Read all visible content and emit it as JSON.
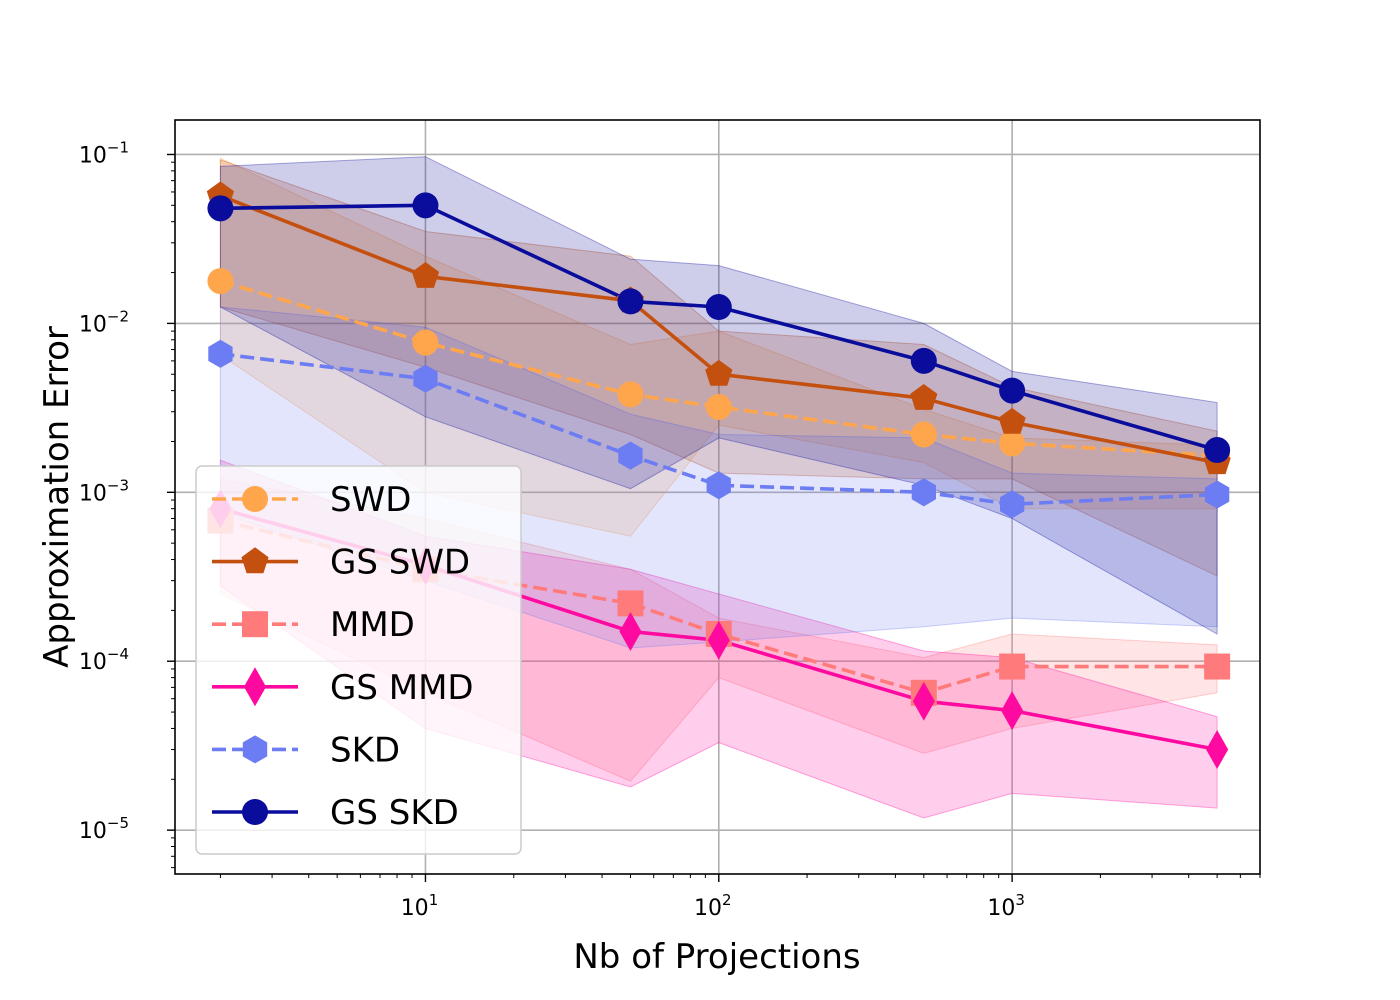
{
  "chart_data": {
    "type": "line",
    "title": "",
    "xlabel": "Nb of Projections",
    "ylabel": "Approximation Error",
    "xscale": "log",
    "yscale": "log",
    "xlim": [
      1.4,
      7000
    ],
    "ylim": [
      5.5e-06,
      0.16
    ],
    "grid": true,
    "legend_position": "lower-left",
    "x": [
      2,
      10,
      50,
      100,
      500,
      1000,
      5000
    ],
    "x_ticks": [
      {
        "value": 10,
        "base": "10",
        "exp": "1"
      },
      {
        "value": 100,
        "base": "10",
        "exp": "2"
      },
      {
        "value": 1000,
        "base": "10",
        "exp": "3"
      }
    ],
    "y_ticks": [
      {
        "value": 0.1,
        "base": "10",
        "exp": "−1"
      },
      {
        "value": 0.01,
        "base": "10",
        "exp": "−2"
      },
      {
        "value": 0.001,
        "base": "10",
        "exp": "−3"
      },
      {
        "value": 0.0001,
        "base": "10",
        "exp": "−4"
      },
      {
        "value": 1e-05,
        "base": "10",
        "exp": "−5"
      }
    ],
    "series": [
      {
        "name": "SWD",
        "color": "#ffa64d",
        "dashed": true,
        "marker": "circle",
        "values": [
          0.0178,
          0.0077,
          0.0038,
          0.0032,
          0.0022,
          0.00195,
          0.00165
        ],
        "lower": [
          0.0065,
          0.001,
          0.00055,
          0.0025,
          0.0015,
          0.0008,
          0.0008
        ],
        "upper": [
          0.095,
          0.025,
          0.0075,
          0.009,
          0.0031,
          0.0021,
          0.0019
        ]
      },
      {
        "name": "GS SWD",
        "color": "#c45010",
        "dashed": false,
        "marker": "pentagon",
        "values": [
          0.057,
          0.019,
          0.0136,
          0.005,
          0.0036,
          0.0026,
          0.0015
        ],
        "lower": [
          0.0125,
          0.0055,
          0.0022,
          0.0013,
          0.0012,
          0.0012,
          0.00032
        ],
        "upper": [
          0.093,
          0.035,
          0.025,
          0.009,
          0.0075,
          0.0042,
          0.0023
        ]
      },
      {
        "name": "MMD",
        "color": "#ff7b7b",
        "dashed": true,
        "marker": "square",
        "values": [
          0.00068,
          0.00035,
          0.00022,
          0.000145,
          6.5e-05,
          9.3e-05,
          9.3e-05
        ],
        "lower": [
          0.00025,
          6.5e-05,
          1.95e-05,
          8e-05,
          2.85e-05,
          4e-05,
          6.5e-05
        ],
        "upper": [
          0.0012,
          0.0007,
          0.00035,
          0.00018,
          0.000105,
          0.000145,
          0.000125
        ]
      },
      {
        "name": "GS MMD",
        "color": "#ff0aa0",
        "dashed": false,
        "marker": "diamond",
        "values": [
          0.0008,
          0.00037,
          0.00015,
          0.000133,
          5.8e-05,
          5.1e-05,
          3e-05
        ],
        "lower": [
          0.00028,
          4e-05,
          1.8e-05,
          3.3e-05,
          1.18e-05,
          1.65e-05,
          1.35e-05
        ],
        "upper": [
          0.00155,
          0.00055,
          0.00035,
          0.00025,
          0.000115,
          0.000105,
          4.7e-05
        ]
      },
      {
        "name": "SKD",
        "color": "#6c7cf2",
        "dashed": true,
        "marker": "hexagon",
        "values": [
          0.0066,
          0.0047,
          0.00165,
          0.0011,
          0.001,
          0.00085,
          0.00097
        ],
        "lower": [
          0.00075,
          0.0003,
          0.00012,
          0.00013,
          0.00016,
          0.00018,
          0.00016
        ],
        "upper": [
          0.0125,
          0.0095,
          0.0029,
          0.0022,
          0.0021,
          0.0013,
          0.0012
        ]
      },
      {
        "name": "GS SKD",
        "color": "#0a0c9c",
        "dashed": false,
        "marker": "circle",
        "values": [
          0.048,
          0.05,
          0.0135,
          0.0125,
          0.006,
          0.004,
          0.00178
        ],
        "lower": [
          0.0125,
          0.0028,
          0.00105,
          0.0021,
          0.0011,
          0.0007,
          0.000145
        ],
        "upper": [
          0.085,
          0.097,
          0.024,
          0.022,
          0.01,
          0.0052,
          0.0034
        ]
      }
    ]
  }
}
